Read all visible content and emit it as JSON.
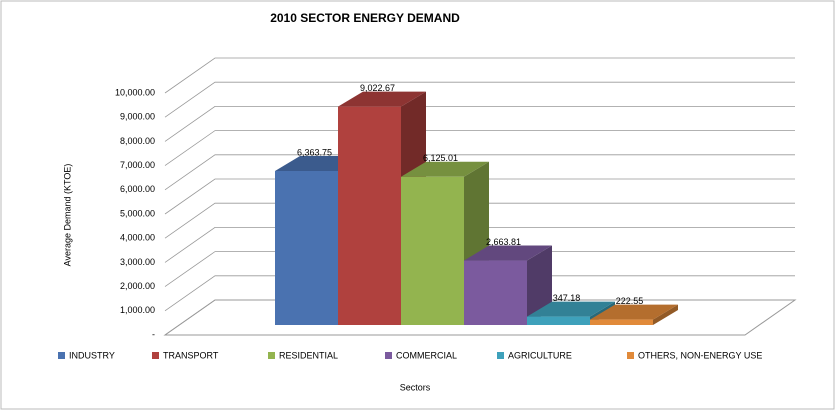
{
  "chart_data": {
    "type": "bar3d",
    "title": "2010 SECTOR ENERGY DEMAND",
    "categories": [
      "INDUSTRY",
      "TRANSPORT",
      "RESIDENTIAL",
      "COMMERCIAL",
      "AGRICULTURE",
      "OTHERS, NON-ENERGY USE"
    ],
    "values": [
      6363.75,
      9022.67,
      6125.01,
      2663.81,
      347.18,
      222.55
    ],
    "value_labels": [
      "6,363.75",
      "9,022.67",
      "6,125.01",
      "2,663.81",
      "347.18",
      "222.55"
    ],
    "colors": [
      "#4a72b0",
      "#b0413e",
      "#93b44f",
      "#7b5a9e",
      "#3ea1bb",
      "#e18a3a"
    ],
    "ylabel": "Average Demand  (KTOE)",
    "xlabel": "Sectors",
    "ylim": [
      0,
      10000
    ],
    "yticks": [
      {
        "value": 0,
        "label": "-"
      },
      {
        "value": 1000,
        "label": "1,000.00"
      },
      {
        "value": 2000,
        "label": "2,000.00"
      },
      {
        "value": 3000,
        "label": "3,000.00"
      },
      {
        "value": 4000,
        "label": "4,000.00"
      },
      {
        "value": 5000,
        "label": "5,000.00"
      },
      {
        "value": 6000,
        "label": "6,000.00"
      },
      {
        "value": 7000,
        "label": "7,000.00"
      },
      {
        "value": 8000,
        "label": "8,000.00"
      },
      {
        "value": 9000,
        "label": "9,000.00"
      },
      {
        "value": 10000,
        "label": "10,000.00"
      }
    ],
    "grid": true,
    "legend": "bottom"
  }
}
